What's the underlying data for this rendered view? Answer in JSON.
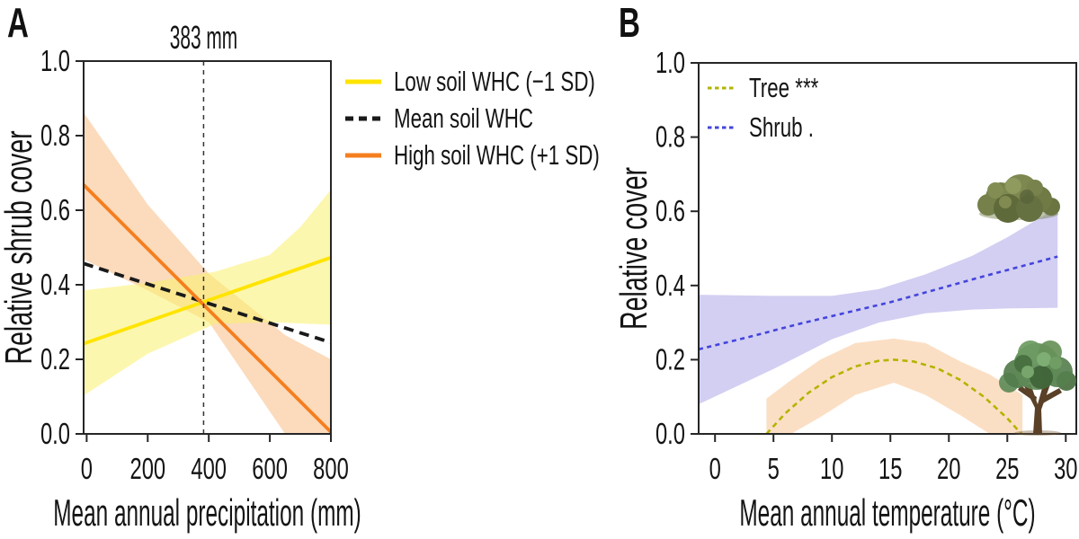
{
  "figure": {
    "background": "#ffffff",
    "panel_a_letter": "A",
    "panel_b_letter": "B"
  },
  "chart_data": [
    {
      "id": "A",
      "type": "line",
      "panel_label": "A",
      "xlabel": "Mean annual precipitation (mm)",
      "ylabel": "Relative shrub cover",
      "xlim": [
        -10,
        800
      ],
      "ylim": [
        0,
        1
      ],
      "grid": false,
      "axis_color": "#262626",
      "xticks": {
        "values": [
          0,
          200,
          400,
          600,
          800
        ],
        "labels": [
          "0",
          "200",
          "400",
          "600",
          "800"
        ]
      },
      "yticks": {
        "values": [
          0,
          0.2,
          0.4,
          0.6,
          0.8,
          1.0
        ],
        "labels": [
          "0.0",
          "0.2",
          "0.4",
          "0.6",
          "0.8",
          "1.0"
        ]
      },
      "vline": {
        "x": 383,
        "label": "383 mm",
        "color": "#333333"
      },
      "bands": [
        {
          "name": "high-soil-whc-ci",
          "color": "#F7BE85",
          "opacity": 0.55,
          "x": [
            -10,
            200,
            400,
            650,
            800
          ],
          "lower": [
            0.468,
            0.385,
            0.3,
            0.0,
            0.0
          ],
          "upper": [
            0.862,
            0.615,
            0.43,
            0.265,
            0.2
          ]
        },
        {
          "name": "low-soil-whc-ci",
          "color": "#F9F06B",
          "opacity": 0.55,
          "x": [
            -10,
            200,
            420,
            600,
            700,
            800
          ],
          "lower": [
            0.103,
            0.215,
            0.295,
            0.3,
            0.296,
            0.293
          ],
          "upper": [
            0.385,
            0.405,
            0.435,
            0.48,
            0.555,
            0.655
          ]
        }
      ],
      "series": [
        {
          "id": "low-soil-whc",
          "name": "Low soil WHC (−1 SD)",
          "color": "#FFE400",
          "width": 3.8,
          "dash": "",
          "x": [
            -10,
            800
          ],
          "y": [
            0.242,
            0.473
          ]
        },
        {
          "id": "mean-soil-whc",
          "name": "Mean soil WHC",
          "color": "#1a1a1a",
          "width": 3.8,
          "dash": "11 7",
          "x": [
            -10,
            800
          ],
          "y": [
            0.457,
            0.245
          ]
        },
        {
          "id": "high-soil-whc",
          "name": "High soil WHC (+1 SD)",
          "color": "#F57E1F",
          "width": 3.8,
          "dash": "",
          "x": [
            -10,
            800
          ],
          "y": [
            0.668,
            0.005
          ]
        }
      ],
      "legend": {
        "position": "outside-right",
        "items": [
          {
            "label": "Low soil WHC (−1 SD)",
            "color": "#FFE400",
            "dash": "",
            "thickness": 5
          },
          {
            "label": "Mean soil WHC",
            "color": "#1a1a1a",
            "dash": "9 6",
            "thickness": 5
          },
          {
            "label": "High soil WHC (+1 SD)",
            "color": "#F57E1F",
            "dash": "",
            "thickness": 5
          }
        ]
      }
    },
    {
      "id": "B",
      "type": "line",
      "panel_label": "B",
      "xlabel": "Mean annual temperature (°C)",
      "ylabel": "Relative cover",
      "xlim": [
        -1.4,
        30.9
      ],
      "ylim": [
        0,
        1
      ],
      "grid": false,
      "axis_color": "#262626",
      "xticks": {
        "values": [
          0,
          5,
          10,
          15,
          20,
          25,
          30
        ],
        "labels": [
          "0",
          "5",
          "10",
          "15",
          "20",
          "25",
          "30"
        ]
      },
      "yticks": {
        "values": [
          0,
          0.2,
          0.4,
          0.6,
          0.8,
          1.0
        ],
        "labels": [
          "0.0",
          "0.2",
          "0.4",
          "0.6",
          "0.8",
          "1.0"
        ]
      },
      "bands": [
        {
          "name": "tree-ci",
          "color": "#F7C089",
          "opacity": 0.5,
          "x": [
            4.4,
            6.5,
            9,
            12,
            15.3,
            18,
            21,
            23.5,
            26.3
          ],
          "lower": [
            0.0,
            0.0,
            0.045,
            0.105,
            0.138,
            0.105,
            0.05,
            0.0,
            0.0
          ],
          "upper": [
            0.095,
            0.145,
            0.2,
            0.245,
            0.257,
            0.245,
            0.195,
            0.16,
            0.105
          ]
        },
        {
          "name": "shrub-ci",
          "color": "#B6B1EA",
          "opacity": 0.62,
          "x": [
            -1.4,
            5,
            10,
            14,
            18,
            22,
            25,
            29.3
          ],
          "lower": [
            0.08,
            0.175,
            0.255,
            0.3,
            0.325,
            0.335,
            0.338,
            0.34
          ],
          "upper": [
            0.375,
            0.372,
            0.372,
            0.39,
            0.43,
            0.48,
            0.53,
            0.61
          ]
        }
      ],
      "series": [
        {
          "id": "tree",
          "name": "Tree ***",
          "color": "#B3B400",
          "width": 2.6,
          "dash": "6 4.5",
          "x": [
            4.4,
            6,
            8,
            10,
            12,
            14,
            15.3,
            17,
            19,
            21,
            23,
            25,
            26.2
          ],
          "y": [
            0.0,
            0.055,
            0.111,
            0.153,
            0.182,
            0.197,
            0.2,
            0.195,
            0.177,
            0.145,
            0.1,
            0.042,
            0.0
          ]
        },
        {
          "id": "shrub",
          "name": "Shrub .",
          "color": "#4444DD",
          "width": 2.6,
          "dash": "5 4.5",
          "x": [
            -1.4,
            3,
            7,
            11,
            15,
            19,
            23,
            26,
            29.3
          ],
          "y": [
            0.228,
            0.262,
            0.295,
            0.325,
            0.355,
            0.39,
            0.425,
            0.45,
            0.478
          ]
        }
      ],
      "legend": {
        "position": "inside-top-left",
        "items": [
          {
            "label": "Tree ***",
            "color": "#B3B400",
            "dash": "4.5 3.5",
            "thickness": 3
          },
          {
            "label": "Shrub .",
            "color": "#4444DD",
            "dash": "4.5 3.5",
            "thickness": 3
          }
        ]
      },
      "icons": [
        {
          "name": "shrub-icon"
        },
        {
          "name": "tree-icon"
        }
      ]
    }
  ]
}
